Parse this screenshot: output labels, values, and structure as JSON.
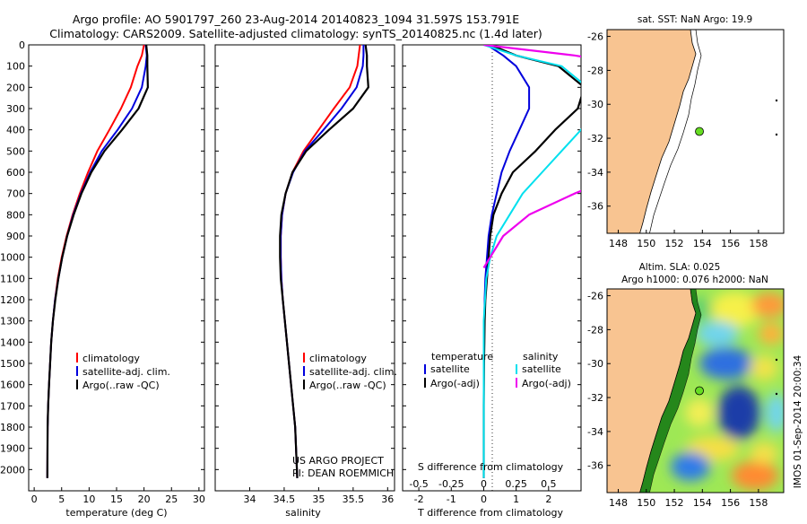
{
  "header": {
    "line1": "Argo profile: AO 5901797_260 23-Aug-2014 20140823_1094 31.597S 153.791E",
    "line2": "Climatology: CARS2009. Satellite-adjusted climatology: synTS_20140825.nc (1.4d later)"
  },
  "colors": {
    "climatology": "#ff0000",
    "satellite": "#0000dd",
    "argo": "#000000",
    "cyan": "#00e0ee",
    "magenta": "#ee00ee",
    "land": "#f8c491"
  },
  "chart_data": [
    {
      "type": "line",
      "id": "temperature",
      "xlabel": "temperature (deg C)",
      "ylabel": "",
      "xlim": [
        -1,
        31
      ],
      "ylim": [
        2100,
        0
      ],
      "xticks": [
        0,
        5,
        10,
        15,
        20,
        25,
        30
      ],
      "yticks": [
        0,
        100,
        200,
        300,
        400,
        500,
        600,
        700,
        800,
        900,
        1000,
        1100,
        1200,
        1300,
        1400,
        1500,
        1600,
        1700,
        1800,
        1900,
        2000
      ],
      "legend": [
        "climatology",
        "satellite-adj. clim.",
        "Argo(..raw -QC)"
      ],
      "series": [
        {
          "name": "climatology",
          "color": "#ff0000",
          "x": [
            20.0,
            19.6,
            18.8,
            17.6,
            15.8,
            13.7,
            11.5,
            9.8,
            8.3,
            7.0,
            5.9,
            5.0,
            4.3,
            3.8,
            3.4,
            3.1,
            2.9,
            2.7,
            2.55,
            2.45,
            2.4
          ],
          "y": [
            0,
            50,
            100,
            200,
            300,
            400,
            500,
            600,
            700,
            800,
            900,
            1000,
            1100,
            1200,
            1300,
            1400,
            1500,
            1600,
            1700,
            1800,
            2040
          ]
        },
        {
          "name": "satellite-adj. clim.",
          "color": "#0000dd",
          "x": [
            20.3,
            20.5,
            20.3,
            19.6,
            17.8,
            15.2,
            12.3,
            10.2,
            8.5,
            7.1,
            6.0,
            5.1,
            4.4,
            3.8,
            3.4,
            3.1,
            2.9,
            2.7,
            2.55,
            2.45,
            2.4
          ],
          "y": [
            0,
            50,
            100,
            200,
            300,
            400,
            500,
            600,
            700,
            800,
            900,
            1000,
            1100,
            1200,
            1300,
            1400,
            1500,
            1600,
            1700,
            1800,
            2040
          ]
        },
        {
          "name": "Argo(..raw -QC)",
          "color": "#000000",
          "x": [
            20.4,
            20.6,
            20.6,
            20.7,
            19.0,
            16.0,
            12.8,
            10.4,
            8.6,
            7.2,
            6.0,
            5.1,
            4.4,
            3.85,
            3.4,
            3.1,
            2.9,
            2.7,
            2.55,
            2.45,
            2.4
          ],
          "y": [
            0,
            50,
            100,
            200,
            300,
            400,
            500,
            600,
            700,
            800,
            900,
            1000,
            1100,
            1200,
            1300,
            1400,
            1500,
            1600,
            1700,
            1800,
            2040
          ]
        }
      ]
    },
    {
      "type": "line",
      "id": "salinity",
      "xlabel": "salinity",
      "ylabel": "",
      "xlim": [
        33.5,
        36.1
      ],
      "ylim": [
        2100,
        0
      ],
      "xticks": [
        34,
        34.5,
        35,
        35.5,
        36
      ],
      "legend": [
        "climatology",
        "satellite-adj. clim.",
        "Argo(..raw -QC)"
      ],
      "annotation": [
        "US ARGO PROJECT",
        "PI: DEAN ROEMMICH"
      ],
      "series": [
        {
          "name": "climatology",
          "color": "#ff0000",
          "x": [
            35.6,
            35.58,
            35.56,
            35.45,
            35.22,
            35.0,
            34.78,
            34.62,
            34.52,
            34.47,
            34.45,
            34.45,
            34.46,
            34.48,
            34.51,
            34.54,
            34.57,
            34.6,
            34.63,
            34.66,
            34.69
          ],
          "y": [
            0,
            50,
            100,
            200,
            300,
            400,
            500,
            600,
            700,
            800,
            900,
            1000,
            1100,
            1200,
            1300,
            1400,
            1500,
            1600,
            1700,
            1800,
            2040
          ]
        },
        {
          "name": "satellite-adj. clim.",
          "color": "#0000dd",
          "x": [
            35.65,
            35.65,
            35.64,
            35.55,
            35.33,
            35.07,
            34.8,
            34.63,
            34.52,
            34.47,
            34.45,
            34.45,
            34.46,
            34.48,
            34.51,
            34.54,
            34.57,
            34.6,
            34.63,
            34.66,
            34.69
          ],
          "y": [
            0,
            50,
            100,
            200,
            300,
            400,
            500,
            600,
            700,
            800,
            900,
            1000,
            1100,
            1200,
            1300,
            1400,
            1500,
            1600,
            1700,
            1800,
            2040
          ]
        },
        {
          "name": "Argo(..raw -QC)",
          "color": "#000000",
          "x": [
            35.68,
            35.7,
            35.7,
            35.72,
            35.5,
            35.15,
            34.82,
            34.62,
            34.52,
            34.46,
            34.44,
            34.44,
            34.45,
            34.48,
            34.51,
            34.54,
            34.57,
            34.6,
            34.63,
            34.66,
            34.69
          ],
          "y": [
            0,
            50,
            100,
            200,
            300,
            400,
            500,
            600,
            700,
            800,
            900,
            1000,
            1100,
            1200,
            1300,
            1400,
            1500,
            1600,
            1700,
            1800,
            2040
          ]
        }
      ]
    },
    {
      "type": "line",
      "id": "differences",
      "xlabel": "T difference from climatology",
      "xlabel2": "S difference from climatology",
      "xlim": [
        -2.5,
        3.0
      ],
      "ylim": [
        2100,
        0
      ],
      "xticks": [
        -2,
        -1,
        0,
        1,
        2
      ],
      "xticks_top": [
        -0.5,
        -0.25,
        0,
        0.25,
        0.5
      ],
      "legend_titles": [
        "temperature",
        "salinity"
      ],
      "legend": [
        "satellite",
        "Argo(-adj)",
        "satellite",
        "Argo(-adj)"
      ],
      "series": [
        {
          "name": "satellite",
          "group": "temperature",
          "color": "#0000dd",
          "x": [
            0.1,
            0.6,
            1.0,
            1.4,
            1.4,
            1.1,
            0.8,
            0.55,
            0.4,
            0.25,
            0.15,
            0.1,
            0.05,
            0.03,
            0.02,
            0.01,
            0.0,
            0.0,
            0.0
          ],
          "y": [
            0,
            50,
            100,
            200,
            300,
            400,
            500,
            600,
            700,
            800,
            900,
            1000,
            1100,
            1200,
            1300,
            1400,
            1500,
            1700,
            2040
          ]
        },
        {
          "name": "Argo(-adj)",
          "group": "temperature",
          "color": "#000000",
          "x": [
            0.2,
            1.0,
            2.3,
            3.1,
            2.9,
            2.2,
            1.6,
            0.9,
            0.55,
            0.3,
            0.2,
            0.15,
            0.1,
            0.05,
            0.03,
            0.02,
            0.01,
            0.0,
            0.0
          ],
          "y": [
            0,
            50,
            100,
            200,
            300,
            400,
            500,
            600,
            700,
            800,
            900,
            1000,
            1100,
            1200,
            1300,
            1400,
            1500,
            1700,
            2040
          ]
        },
        {
          "name": "satellite",
          "group": "salinity",
          "color": "#00e0ee",
          "x": [
            0.0,
            0.25,
            0.6,
            0.8,
            0.85,
            0.75,
            0.6,
            0.45,
            0.3,
            0.2,
            0.1,
            0.05,
            0.02,
            0.0,
            0.0
          ],
          "y": [
            0,
            50,
            100,
            200,
            300,
            400,
            500,
            600,
            700,
            800,
            900,
            1000,
            1100,
            1300,
            2040
          ]
        },
        {
          "name": "Argo(-adj)",
          "group": "salinity",
          "color": "#ee00ee",
          "x": [
            0.0,
            0.7,
            1.2,
            1.5,
            1.65,
            1.55,
            1.4,
            1.1,
            0.7,
            0.35,
            0.15,
            0.05,
            0.0
          ],
          "y": [
            0,
            50,
            100,
            200,
            300,
            400,
            500,
            600,
            700,
            800,
            900,
            1000,
            1050
          ]
        }
      ]
    },
    {
      "type": "map",
      "id": "sst-map",
      "title": "sat. SST: NaN Argo: 19.9",
      "xticks": [
        148,
        150,
        152,
        154,
        156,
        158
      ],
      "yticks": [
        -26,
        -28,
        -30,
        -32,
        -34,
        -36
      ],
      "xlim": [
        147.2,
        159.8
      ],
      "ylim": [
        -37.6,
        -25.6
      ],
      "float": {
        "lon": 153.79,
        "lat": -31.6
      }
    },
    {
      "type": "map",
      "id": "sla-map",
      "title_line1": "Altim. SLA: 0.025",
      "title_line2": "Argo h1000: 0.076 h2000: NaN",
      "xticks": [
        148,
        150,
        152,
        154,
        156,
        158
      ],
      "yticks": [
        -26,
        -28,
        -30,
        -32,
        -34,
        -36
      ],
      "xlim": [
        147.2,
        159.8
      ],
      "ylim": [
        -37.6,
        -25.6
      ],
      "float": {
        "lon": 153.79,
        "lat": -31.6
      },
      "sidebar_text": "IMOS 01-Sep-2014 20:00:34"
    }
  ]
}
